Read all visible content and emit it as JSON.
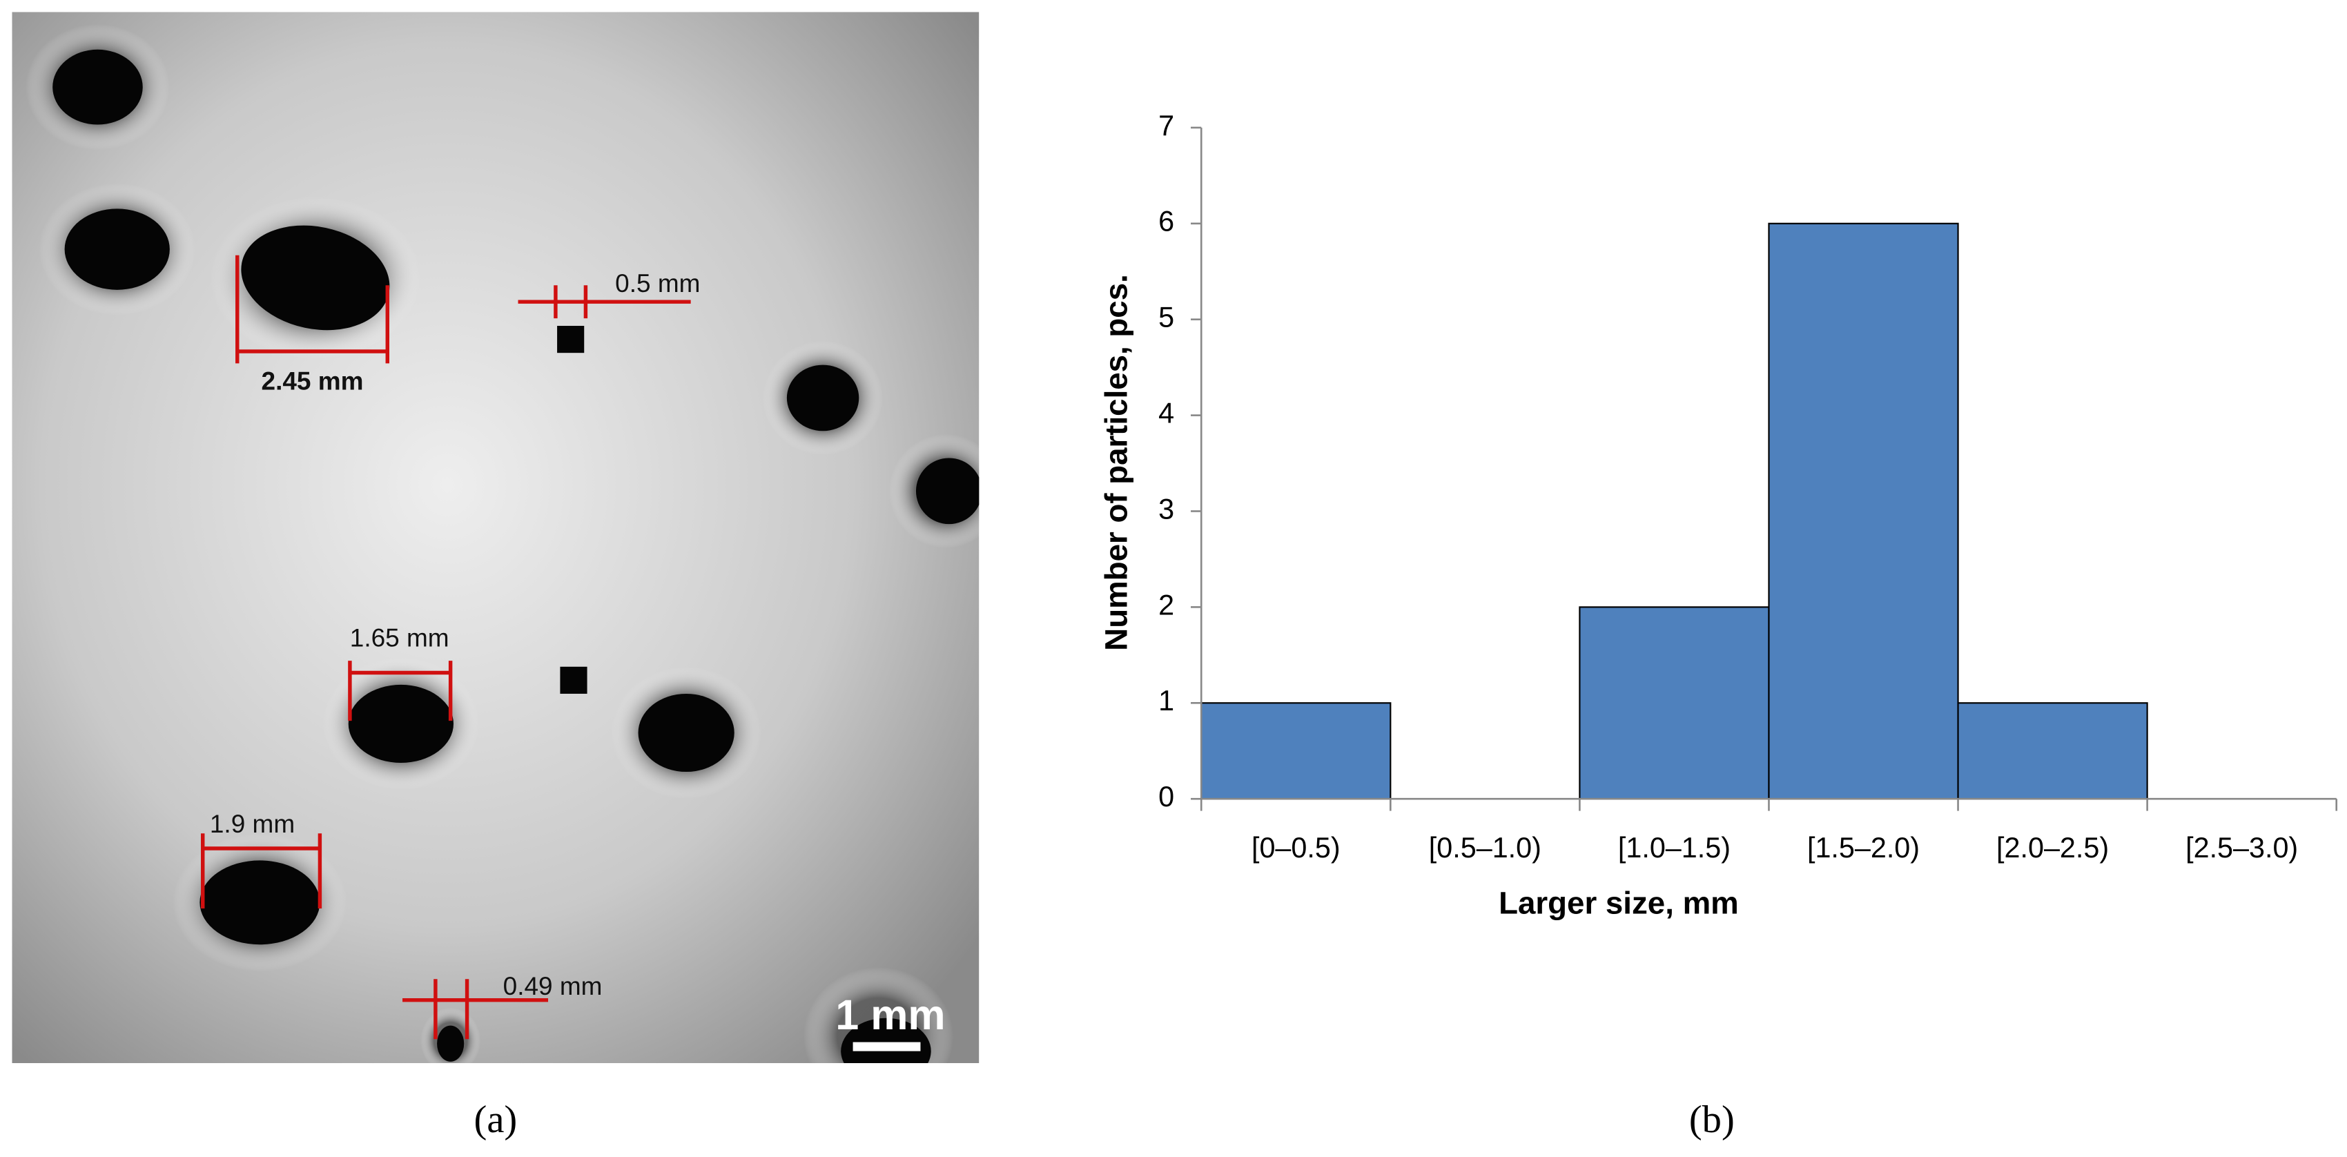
{
  "image_panel": {
    "label": "(a)",
    "annotations": [
      "2.45 mm",
      "0.5 mm",
      "1.65 mm",
      "1.9 mm",
      "0.49 mm"
    ],
    "scale_bar": "1 mm"
  },
  "chart_data": {
    "type": "bar",
    "label": "(b)",
    "x_label": "Larger size, mm",
    "y_label": "Number of particles, pcs.",
    "categories": [
      "[0–0.5)",
      "[0.5–1.0)",
      "[1.0–1.5)",
      "[1.5–2.0)",
      "[2.0–2.5)",
      "[2.5–3.0)"
    ],
    "values": [
      1,
      0,
      2,
      6,
      1,
      0
    ],
    "color": "#4f81bd",
    "ylim": [
      0,
      7
    ],
    "yticks": [
      0,
      1,
      2,
      3,
      4,
      5,
      6,
      7
    ],
    "grid": false
  }
}
